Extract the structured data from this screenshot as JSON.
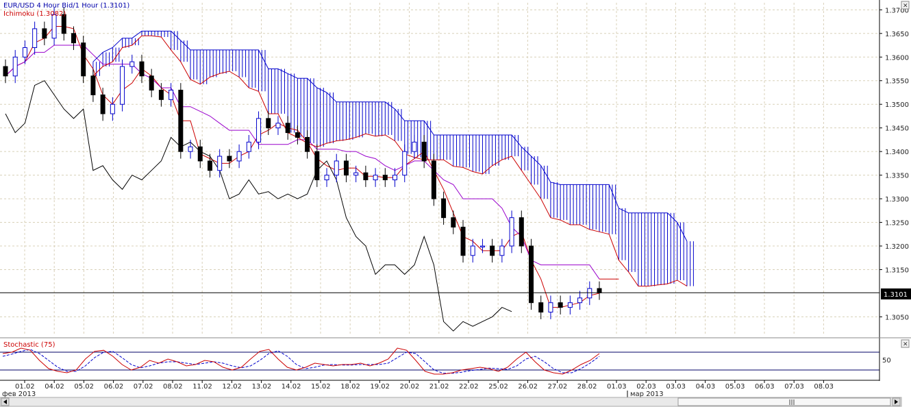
{
  "chart_data": {
    "type": "candlestick",
    "title": "EUR/USD 4 Hour Bid/1 Hour (1.3101)",
    "indicator_label": "Ichimoku (1.3082)",
    "last_price": 1.3101,
    "last_price_label": "1.3101",
    "ylim": [
      1.301,
      1.3715
    ],
    "y_ticks": [
      "1.3700",
      "1.3650",
      "1.3600",
      "1.3550",
      "1.3500",
      "1.3450",
      "1.3400",
      "1.3350",
      "1.3300",
      "1.3250",
      "1.3200",
      "1.3150",
      "1.3050"
    ],
    "x_ticks": [
      "01.02",
      "04.02",
      "05.02",
      "06.02",
      "07.02",
      "08.02",
      "11.02",
      "12.02",
      "13.02",
      "14.02",
      "15.02",
      "18.02",
      "19.02",
      "20.02",
      "21.02",
      "22.02",
      "25.02",
      "26.02",
      "27.02",
      "28.02",
      "01.03",
      "02.03",
      "03.03",
      "04.03",
      "05.03",
      "06.03",
      "07.03",
      "08.03"
    ],
    "month_labels": [
      "фев 2013",
      "мар 2013"
    ],
    "colors": {
      "up_candle": "#0000cc",
      "down_candle": "#000000",
      "tenkan": "#cc0000",
      "kijun": "#9900cc",
      "chikou": "#000000",
      "cloud_bull": "#cc0000",
      "cloud_bear": "#0000cc",
      "price_line": "#000000"
    },
    "ohlc_closes": [
      1.356,
      1.36,
      1.362,
      1.366,
      1.364,
      1.369,
      1.365,
      1.363,
      1.356,
      1.352,
      1.348,
      1.35,
      1.358,
      1.359,
      1.356,
      1.353,
      1.351,
      1.353,
      1.34,
      1.341,
      1.338,
      1.336,
      1.339,
      1.338,
      1.34,
      1.342,
      1.347,
      1.345,
      1.346,
      1.344,
      1.343,
      1.34,
      1.334,
      1.335,
      1.338,
      1.335,
      1.3355,
      1.334,
      1.335,
      1.334,
      1.335,
      1.34,
      1.342,
      1.338,
      1.33,
      1.326,
      1.324,
      1.318,
      1.32,
      1.32,
      1.318,
      1.32,
      1.326,
      1.32,
      1.308,
      1.306,
      1.308,
      1.307,
      1.308,
      1.309,
      1.311,
      1.3101
    ]
  },
  "stochastic": {
    "label": "Stochastic (75)",
    "level_label": "50",
    "ylim": [
      0,
      100
    ],
    "k_values": [
      80,
      85,
      100,
      92,
      55,
      25,
      15,
      10,
      20,
      60,
      88,
      92,
      70,
      40,
      20,
      30,
      55,
      45,
      60,
      50,
      35,
      40,
      55,
      50,
      30,
      20,
      30,
      60,
      88,
      95,
      60,
      30,
      20,
      30,
      45,
      40,
      35,
      40,
      40,
      45,
      35,
      45,
      60,
      100,
      92,
      55,
      15,
      5,
      5,
      10,
      20,
      25,
      30,
      25,
      15,
      30,
      60,
      85,
      50,
      20,
      10,
      5,
      20,
      40,
      55,
      80
    ],
    "d_values": [
      70,
      78,
      88,
      95,
      80,
      55,
      30,
      15,
      15,
      35,
      65,
      85,
      88,
      65,
      40,
      28,
      35,
      45,
      50,
      50,
      45,
      40,
      45,
      50,
      45,
      35,
      28,
      35,
      55,
      80,
      90,
      70,
      40,
      25,
      30,
      38,
      40,
      38,
      38,
      40,
      40,
      40,
      45,
      65,
      85,
      80,
      50,
      20,
      8,
      8,
      12,
      18,
      22,
      27,
      25,
      22,
      35,
      60,
      70,
      50,
      25,
      10,
      10,
      25,
      45,
      70
    ]
  },
  "ui": {
    "close_glyph": "✕"
  }
}
